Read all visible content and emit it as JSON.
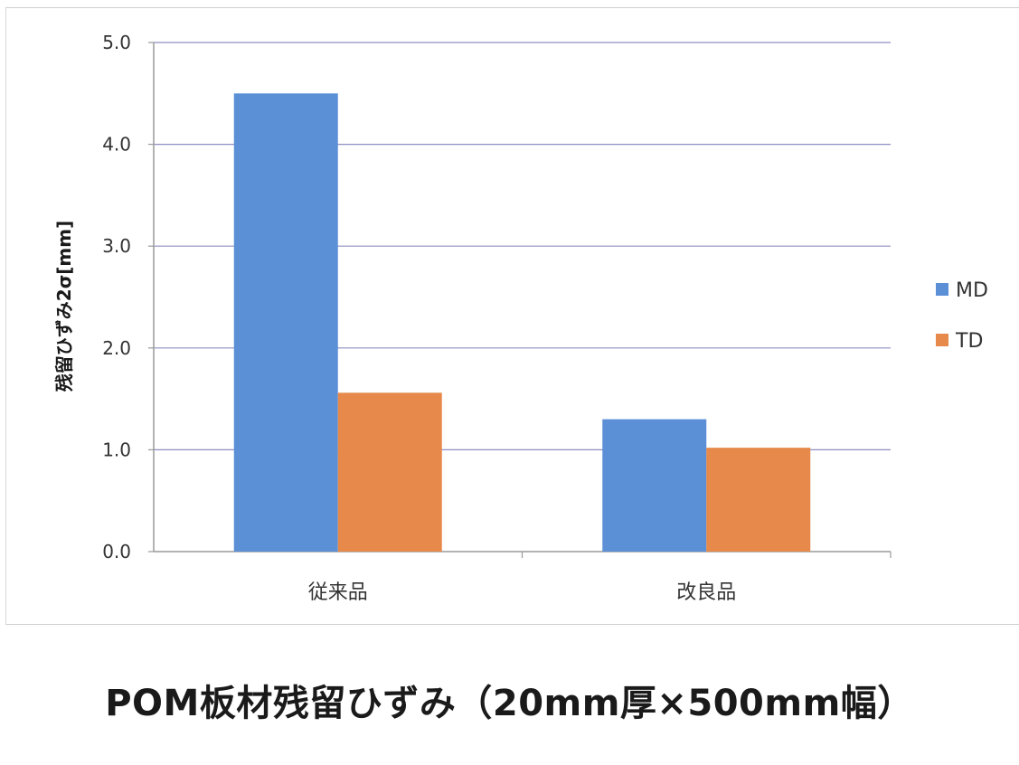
{
  "chart_data": {
    "type": "bar",
    "categories": [
      "従来品",
      "改良品"
    ],
    "series": [
      {
        "name": "MD",
        "values": [
          4.5,
          1.3
        ],
        "color": "#5b8fd6"
      },
      {
        "name": "TD",
        "values": [
          1.56,
          1.02
        ],
        "color": "#e6894a"
      }
    ],
    "ylabel": "残留ひずみ2σ[mm]",
    "xlabel": "",
    "ylim": [
      0,
      5
    ],
    "yticks": [
      "0.0",
      "1.0",
      "2.0",
      "3.0",
      "4.0",
      "5.0"
    ],
    "grid": true,
    "legend_position": "right"
  },
  "caption": "POM板材残留ひずみ（20mm厚×500mm幅）"
}
